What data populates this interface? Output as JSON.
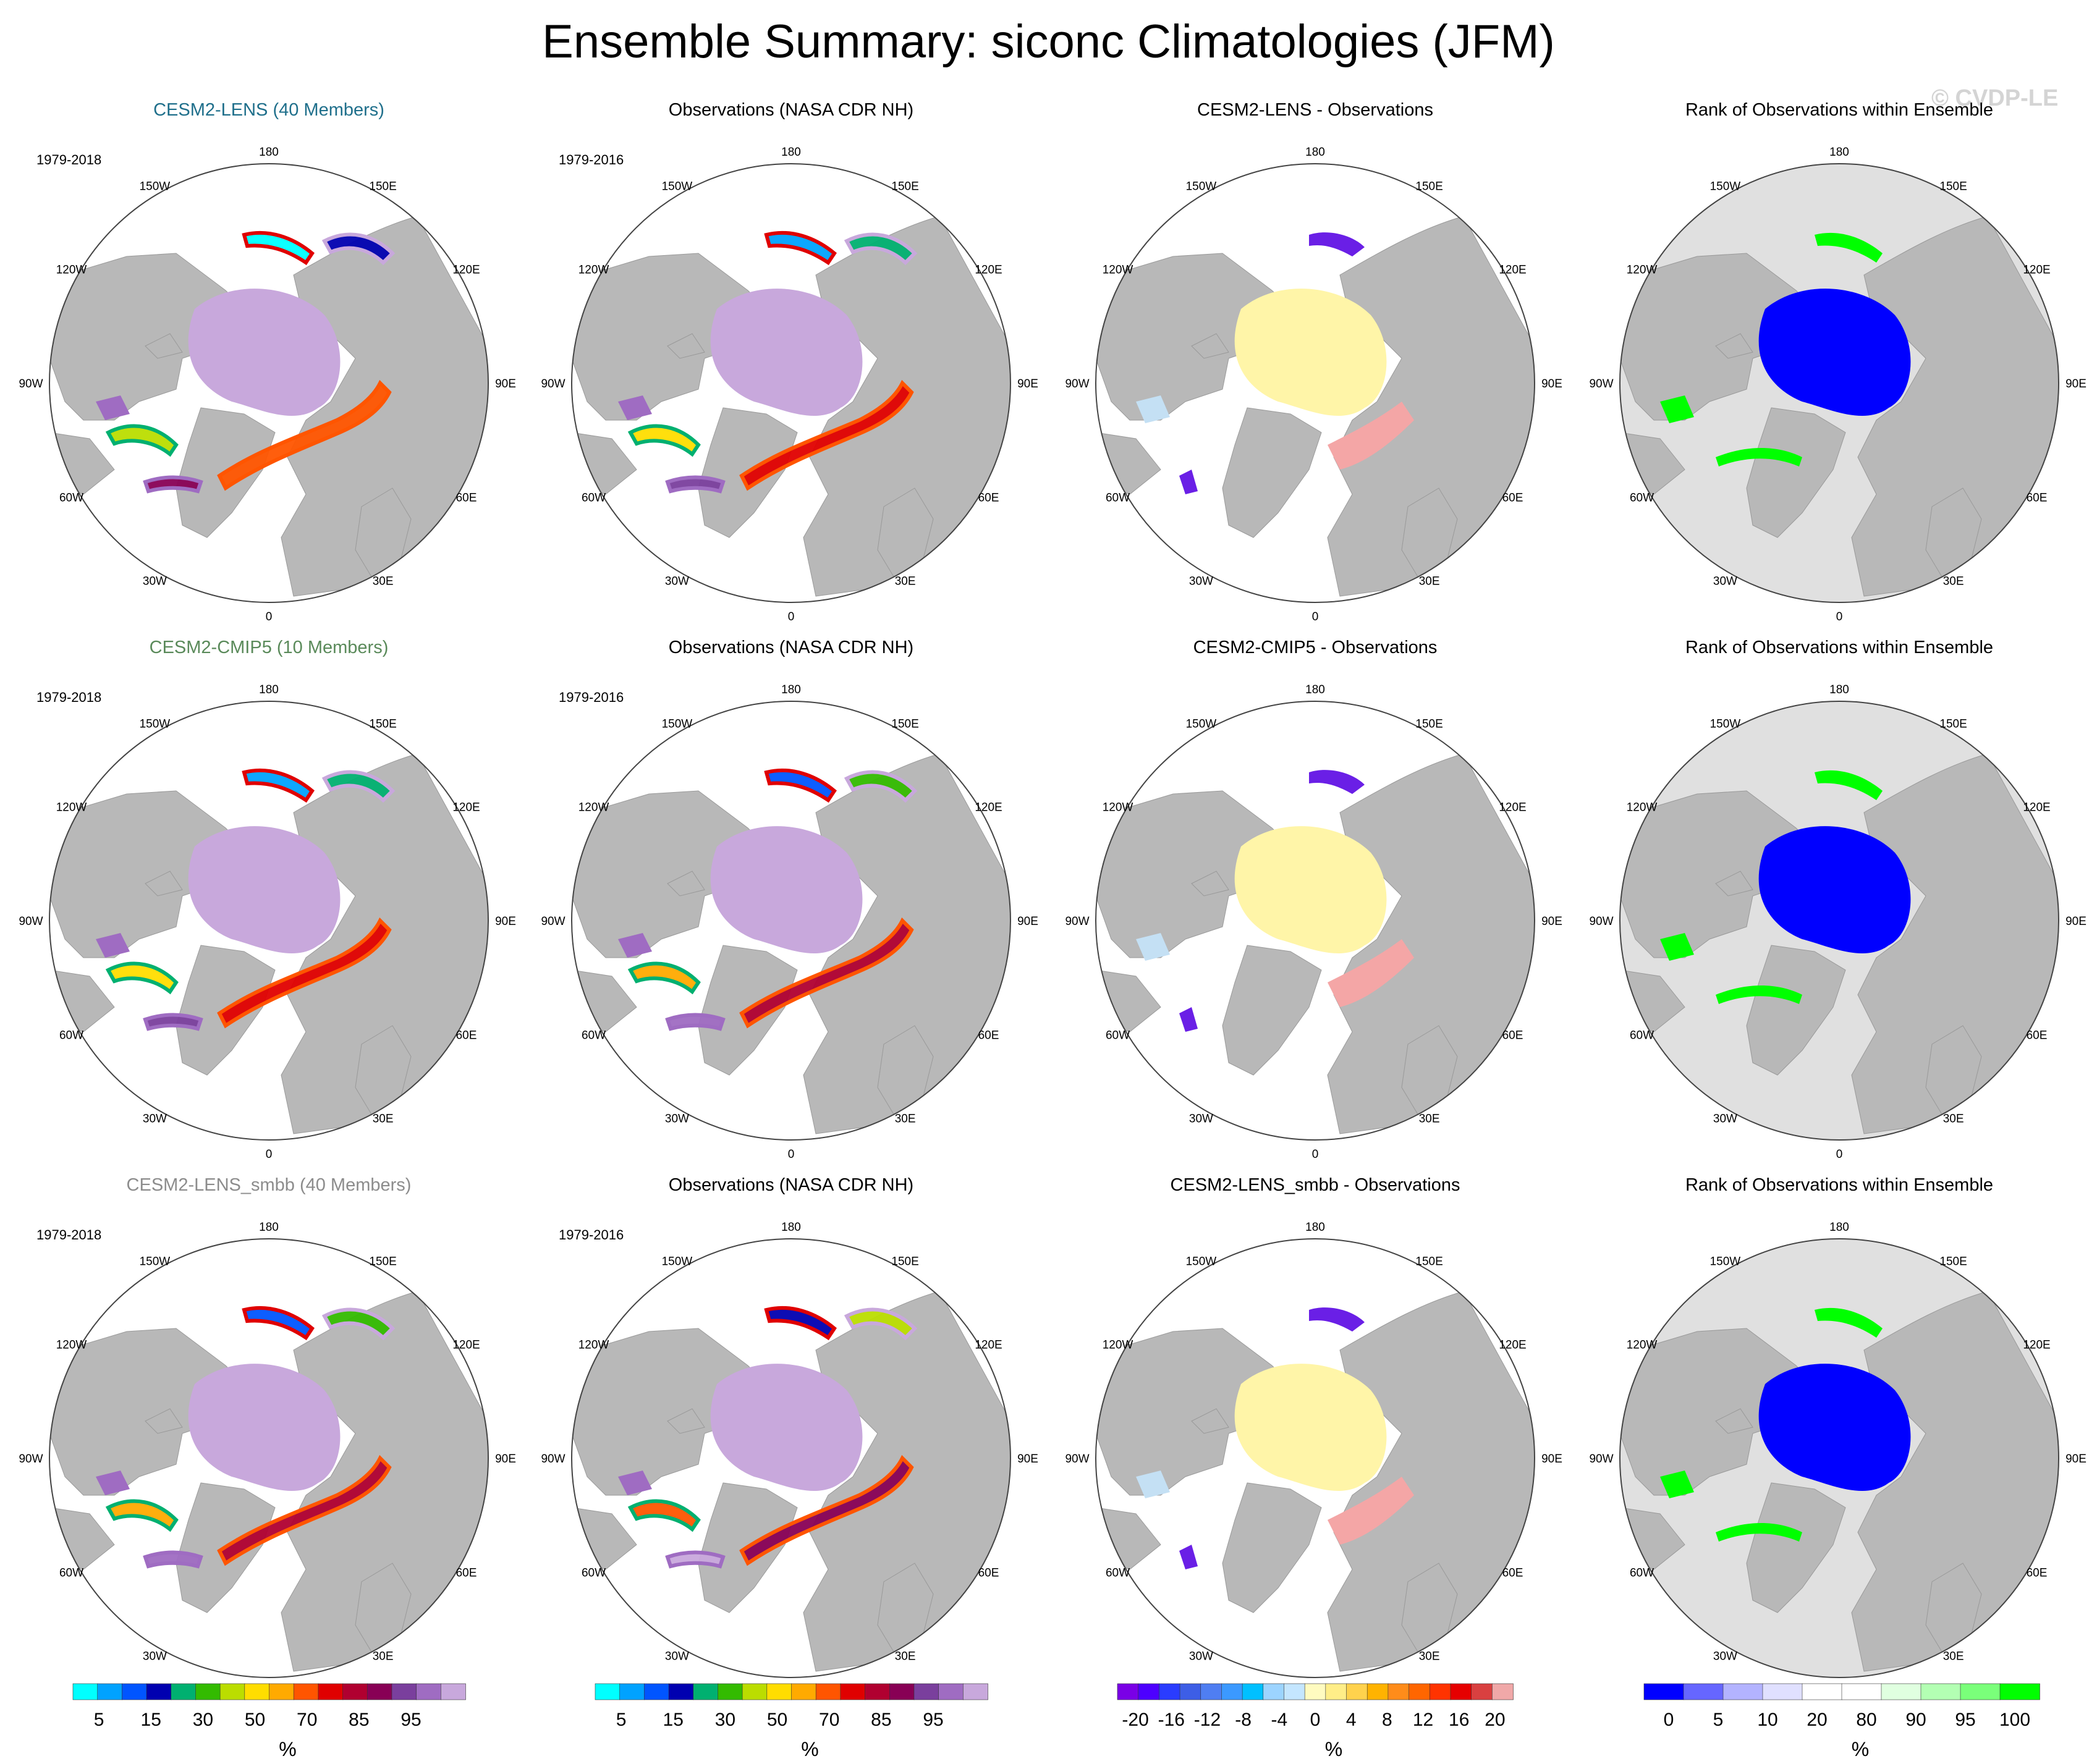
{
  "title": "Ensemble Summary: siconc Climatologies (JFM)",
  "watermark": "© CVDP-LE",
  "lon_labels": [
    "180",
    "150E",
    "120E",
    "90E",
    "60E",
    "30E",
    "0",
    "30W",
    "60W",
    "90W",
    "120W",
    "150W"
  ],
  "rows": [
    {
      "model_title": "CESM2-LENS (40 Members)",
      "model_color": "#1f6f8b",
      "model_period": "1979-2018",
      "obs_title": "Observations (NASA CDR NH)",
      "obs_period": "1979-2016",
      "diff_title": "CESM2-LENS - Observations",
      "rank_title": "Rank of Observations within Ensemble"
    },
    {
      "model_title": "CESM2-CMIP5 (10 Members)",
      "model_color": "#5a8a5a",
      "model_period": "1979-2018",
      "obs_title": "Observations (NASA CDR NH)",
      "obs_period": "1979-2016",
      "diff_title": "CESM2-CMIP5 - Observations",
      "rank_title": "Rank of Observations within Ensemble"
    },
    {
      "model_title": "CESM2-LENS_smbb (40 Members)",
      "model_color": "#8c8c8c",
      "model_period": "1979-2018",
      "obs_title": "Observations (NASA CDR NH)",
      "obs_period": "1979-2016",
      "diff_title": "CESM2-LENS_smbb - Observations",
      "rank_title": "Rank of Observations within Ensemble"
    }
  ],
  "colorbars": {
    "siconc": {
      "colors": [
        "#00ffff",
        "#00a2ff",
        "#0055ff",
        "#0000b0",
        "#00b070",
        "#33bb00",
        "#bbdd00",
        "#ffdd00",
        "#ffaa00",
        "#ff5500",
        "#e00000",
        "#b00030",
        "#880055",
        "#7a3f9d",
        "#9f6cc2",
        "#c8a8dc"
      ],
      "tick_labels": [
        "5",
        "15",
        "30",
        "50",
        "70",
        "85",
        "95"
      ],
      "unit": "%"
    },
    "diff": {
      "colors": [
        "#7a00e6",
        "#4d00ff",
        "#2a3cff",
        "#3d5ee6",
        "#4f7ef2",
        "#3b99ff",
        "#00c0ff",
        "#9cd4ff",
        "#c4e6ff",
        "#fffbc0",
        "#ffee88",
        "#ffd24d",
        "#ffb300",
        "#ff8c1a",
        "#ff6600",
        "#ff3300",
        "#e60000",
        "#d94040",
        "#f0a8a8"
      ],
      "tick_labels": [
        "-20",
        "-16",
        "-12",
        "-8",
        "-4",
        "0",
        "4",
        "8",
        "12",
        "16",
        "20"
      ],
      "unit": "%"
    },
    "rank": {
      "colors": [
        "#0000ff",
        "#6666ff",
        "#b3b3ff",
        "#e0e0ff",
        "#ffffff",
        "#ffffff",
        "#e0ffe0",
        "#b3ffb3",
        "#7aff7a",
        "#00ff00"
      ],
      "tick_labels": [
        "0",
        "5",
        "10",
        "20",
        "80",
        "90",
        "95",
        "100"
      ],
      "unit": "%"
    }
  },
  "map_colors": {
    "land": "#b8b8b8",
    "ocean": "#ffffff",
    "rank_bg": "#e0e0e0",
    "sic_central": "#c8a8dc",
    "sic_edge": "#9f6cc2",
    "diff_central": "#fff5a8",
    "diff_pos": "#f4a6a6",
    "diff_neg": "#6a1fe6",
    "diff_light_neg": "#c4e0f4",
    "rank_low": "#0000ff",
    "rank_high": "#00ff00"
  }
}
